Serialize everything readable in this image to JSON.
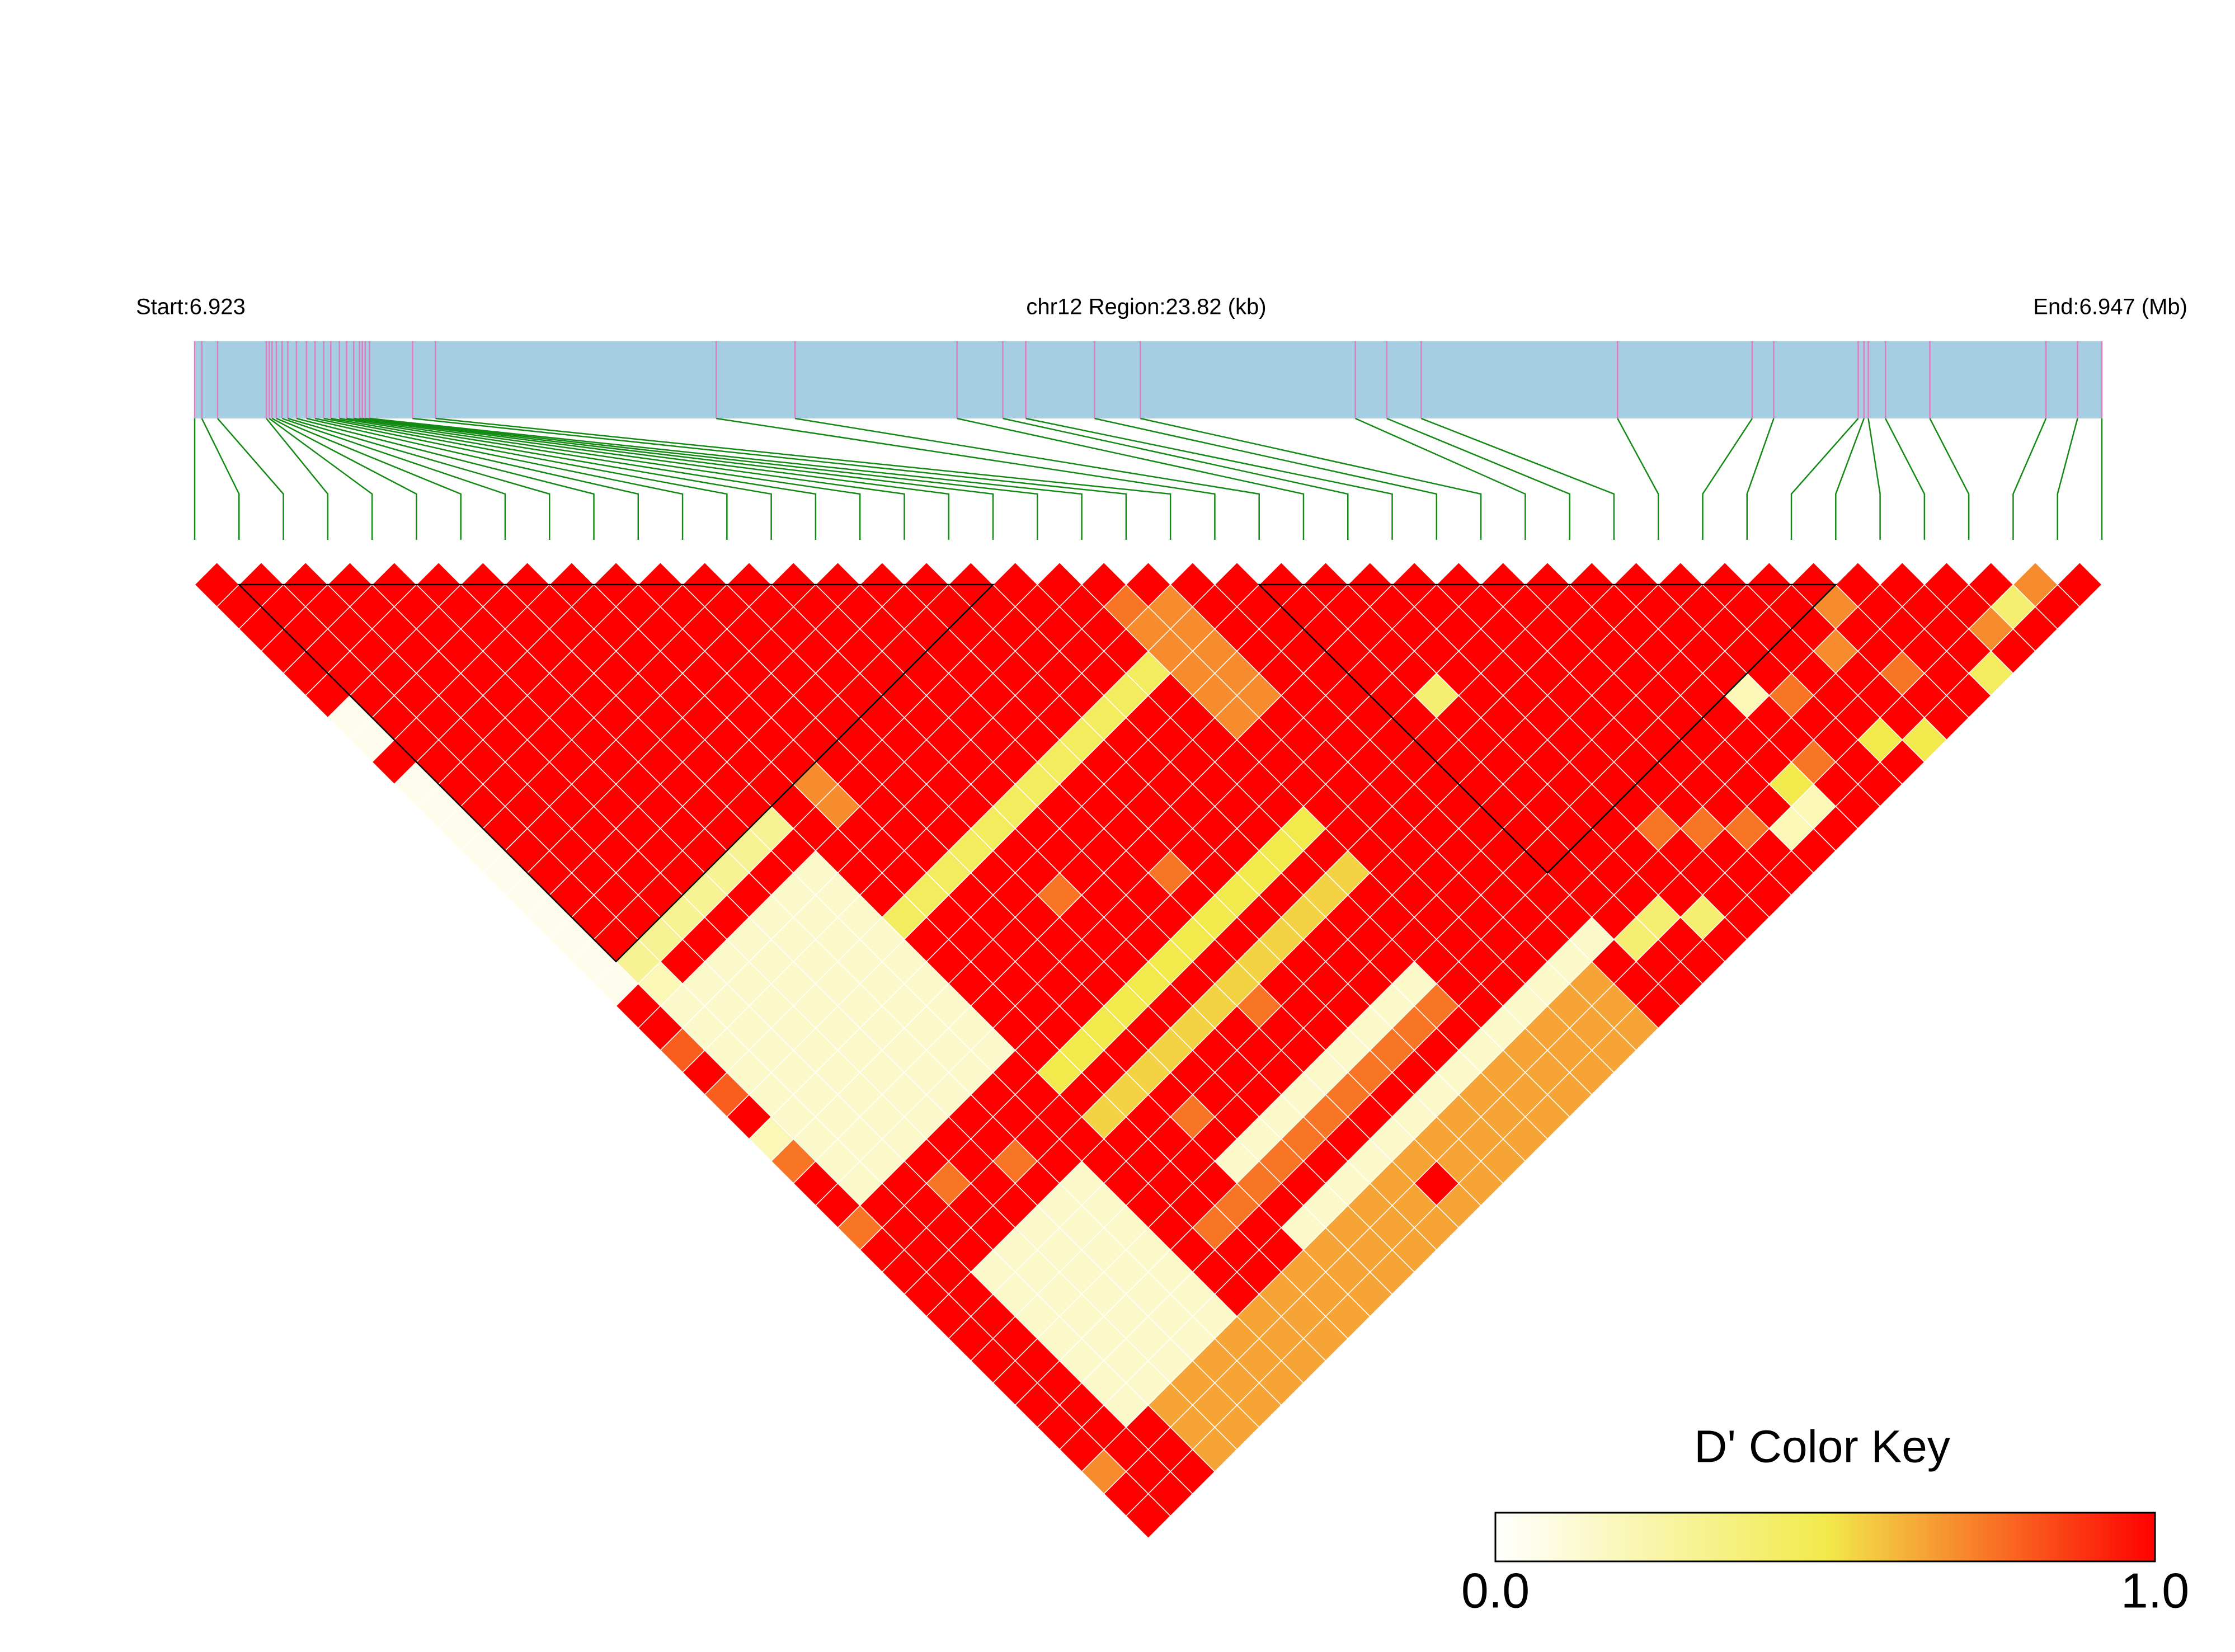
{
  "chart_data": {
    "type": "ld_heatmap",
    "start_label": "Start:6.923",
    "region_label": "chr12 Region:23.82 (kb)",
    "end_label": "End:6.947 (Mb)",
    "xlim": [
      6.923,
      6.94682
    ],
    "bar_color": "#a6cee3",
    "site_color": "#e07cc0",
    "connector_color": "#138a13",
    "block_color": "#000000",
    "positions": [
      6.923,
      6.923089,
      6.923286,
      6.923895,
      6.923931,
      6.923966,
      6.92402,
      6.924092,
      6.924163,
      6.924271,
      6.924396,
      6.924503,
      6.924611,
      6.9247,
      6.924808,
      6.924897,
      6.924986,
      6.925058,
      6.925094,
      6.92513,
      6.925183,
      6.92572,
      6.926007,
      6.929514,
      6.930498,
      6.932521,
      6.933093,
      6.93338,
      6.934239,
      6.934811,
      6.937496,
      6.937889,
      6.938319,
      6.940771,
      6.942453,
      6.942722,
      6.943777,
      6.943849,
      6.943903,
      6.944117,
      6.944672,
      6.946122,
      6.946516,
      6.94682
    ],
    "blocks": [
      [
        1,
        18
      ],
      [
        24,
        37
      ]
    ],
    "dprime": [
      [
        1,
        1,
        1,
        1,
        1,
        1,
        0.05,
        0.05,
        1,
        0.05,
        0.05,
        0.05,
        0.05,
        0.05,
        0.05,
        0.05,
        0.05,
        0.05,
        0.05,
        1,
        1,
        0.8,
        1,
        0.8,
        1,
        0.2,
        0.75,
        1,
        1,
        0.75,
        1,
        1,
        1,
        1,
        1,
        1,
        1,
        1,
        1,
        1,
        0.7,
        1,
        1
      ],
      [
        1,
        1,
        1,
        1,
        1,
        1,
        1,
        1,
        1,
        1,
        1,
        1,
        1,
        1,
        1,
        1,
        1,
        0.3,
        0.2,
        0.15,
        0.15,
        0.15,
        0.15,
        0.15,
        0.15,
        0.15,
        0.15,
        0.15,
        1,
        1,
        1,
        1,
        1,
        1,
        1,
        1,
        1,
        1,
        1,
        1,
        1,
        1
      ],
      [
        1,
        1,
        1,
        1,
        1,
        1,
        1,
        1,
        1,
        1,
        1,
        1,
        1,
        1,
        1,
        1,
        0.3,
        1,
        0.15,
        0.15,
        0.15,
        0.15,
        0.15,
        0.15,
        0.15,
        0.15,
        0.15,
        1,
        1,
        1,
        1,
        0.15,
        0.15,
        0.15,
        0.15,
        0.15,
        0.15,
        0.15,
        1,
        1,
        1
      ],
      [
        1,
        1,
        1,
        1,
        1,
        1,
        1,
        1,
        1,
        1,
        1,
        1,
        1,
        1,
        1,
        0.3,
        1,
        0.15,
        0.15,
        0.15,
        0.15,
        0.15,
        0.15,
        0.15,
        0.15,
        0.15,
        1,
        0.75,
        1,
        1,
        0.15,
        0.15,
        0.15,
        0.15,
        0.15,
        0.15,
        0.15,
        0.65,
        0.65,
        0.65
      ],
      [
        1,
        1,
        1,
        1,
        1,
        1,
        1,
        1,
        1,
        1,
        1,
        1,
        1,
        1,
        0.3,
        1,
        0.15,
        0.15,
        0.15,
        0.15,
        0.15,
        0.15,
        0.15,
        0.15,
        0.15,
        1,
        1,
        1,
        1,
        0.15,
        0.15,
        0.15,
        0.15,
        0.15,
        0.15,
        0.15,
        0.65,
        0.65,
        0.65
      ],
      [
        1,
        1,
        1,
        1,
        1,
        1,
        1,
        1,
        1,
        1,
        1,
        1,
        1,
        0.3,
        1,
        0.15,
        0.15,
        0.15,
        0.15,
        0.15,
        0.15,
        0.15,
        0.15,
        0.15,
        1,
        1,
        0.75,
        1,
        0.15,
        0.15,
        0.15,
        0.15,
        0.15,
        0.15,
        0.15,
        0.65,
        0.65,
        0.65
      ],
      [
        1,
        1,
        1,
        1,
        1,
        1,
        1,
        1,
        1,
        1,
        1,
        1,
        0.3,
        1,
        0.15,
        0.15,
        0.15,
        0.15,
        0.15,
        0.15,
        0.15,
        0.15,
        0.15,
        1,
        1,
        1,
        1,
        0.15,
        0.15,
        0.15,
        0.15,
        0.15,
        0.15,
        0.15,
        0.65,
        0.65,
        0.65
      ],
      [
        1,
        1,
        1,
        1,
        1,
        1,
        1,
        1,
        1,
        1,
        1,
        0.3,
        1,
        0.15,
        0.15,
        0.15,
        0.15,
        0.15,
        0.15,
        0.15,
        0.15,
        0.15,
        1,
        1,
        1,
        1,
        1,
        1,
        1,
        1,
        1,
        1,
        1,
        0.65,
        0.65,
        0.65
      ],
      [
        1,
        1,
        1,
        1,
        1,
        1,
        1,
        1,
        1,
        1,
        1,
        1,
        1,
        1,
        1,
        0.45,
        1,
        1,
        1,
        1,
        1,
        1,
        0.5,
        1,
        0.55,
        1,
        1,
        1,
        1,
        0.75,
        1,
        1,
        0.65,
        0.65,
        0.65
      ],
      [
        1,
        1,
        1,
        1,
        1,
        1,
        1,
        1,
        1,
        0.7,
        0.7,
        1,
        1,
        1,
        0.45,
        1,
        1,
        1,
        1,
        1,
        1,
        0.5,
        1,
        0.55,
        1,
        1,
        1,
        1,
        0.75,
        1,
        1,
        0.65,
        0.65,
        0.65
      ],
      [
        1,
        1,
        1,
        1,
        1,
        1,
        1,
        1,
        1,
        1,
        1,
        1,
        1,
        0.45,
        1,
        1,
        1,
        1,
        1,
        1,
        0.5,
        1,
        0.55,
        1,
        0.75,
        1,
        0.15,
        0.75,
        1,
        0.15,
        0.65,
        0.65,
        0.65
      ],
      [
        1,
        1,
        1,
        1,
        1,
        1,
        1,
        1,
        1,
        1,
        1,
        1,
        0.45,
        1,
        1,
        1,
        1,
        1,
        1,
        0.5,
        1,
        0.55,
        1,
        1,
        1,
        0.15,
        0.75,
        1,
        0.15,
        0.65,
        0.65,
        0.65
      ],
      [
        1,
        1,
        1,
        1,
        1,
        1,
        1,
        1,
        1,
        1,
        1,
        0.45,
        1,
        1,
        0.75,
        1,
        1,
        1,
        0.5,
        1,
        0.55,
        1,
        1,
        1,
        0.15,
        0.75,
        1,
        0.15,
        0.65,
        0.65,
        0.65
      ],
      [
        1,
        1,
        1,
        1,
        1,
        1,
        1,
        1,
        1,
        1,
        0.45,
        1,
        1,
        1,
        1,
        1,
        1,
        0.5,
        1,
        0.55,
        1,
        1,
        1,
        0.15,
        0.75,
        1,
        0.15,
        0.65,
        0.65,
        0.65
      ],
      [
        1,
        1,
        1,
        1,
        1,
        1,
        1,
        1,
        1,
        0.45,
        1,
        1,
        1,
        1,
        1,
        1,
        0.5,
        1,
        0.55,
        0.75,
        1,
        1,
        0.15,
        0.75,
        1,
        0.15,
        0.65,
        1,
        0.65
      ],
      [
        1,
        1,
        1,
        1,
        1,
        1,
        1,
        1,
        0.45,
        1,
        1,
        1,
        1,
        0.75,
        1,
        0.5,
        1,
        0.55,
        1,
        1,
        1,
        0.15,
        0.75,
        1,
        0.15,
        0.65,
        0.65,
        0.65
      ],
      [
        1,
        1,
        1,
        1,
        1,
        1,
        1,
        0.45,
        1,
        1,
        1,
        1,
        1,
        1,
        0.5,
        1,
        0.55,
        1,
        1,
        1,
        0.15,
        0.75,
        1,
        0.15,
        0.65,
        0.65,
        0.65
      ],
      [
        1,
        1,
        1,
        1,
        1,
        1,
        0.45,
        1,
        1,
        1,
        1,
        1,
        1,
        0.5,
        1,
        0.55,
        1,
        1,
        1,
        0.15,
        0.75,
        1,
        0.15,
        0.65,
        0.65,
        0.65
      ],
      [
        1,
        1,
        1,
        1,
        1,
        0.45,
        1,
        1,
        1,
        1,
        1,
        1,
        0.5,
        1,
        0.55,
        1,
        1,
        1,
        0.15,
        0.75,
        1,
        0.15,
        0.65,
        0.65,
        0.65
      ],
      [
        1,
        1,
        1,
        1,
        0.45,
        1,
        1,
        1,
        1,
        1,
        1,
        0.5,
        1,
        0.55,
        1,
        1,
        1,
        1,
        1,
        1,
        0.15,
        0.65,
        0.65,
        0.65
      ],
      [
        1,
        0.75,
        0.7,
        0.7,
        0.7,
        0.7,
        0.7,
        1,
        1,
        1,
        1,
        1,
        1,
        1,
        1,
        1,
        1,
        1,
        1,
        0.15,
        0.65,
        0.65,
        0.65
      ],
      [
        1,
        0.7,
        0.7,
        0.7,
        0.7,
        0.7,
        1,
        1,
        1,
        1,
        1,
        1,
        1,
        1,
        1,
        1,
        1,
        1,
        0.15,
        0.65,
        0.65,
        0.65
      ],
      [
        1,
        1,
        1,
        1,
        1,
        1,
        1,
        1,
        1,
        1,
        1,
        1,
        1,
        1,
        1,
        1,
        1,
        0.15,
        0.65,
        0.65,
        0.65
      ],
      [
        1,
        1,
        1,
        1,
        1,
        1,
        1,
        1,
        1,
        1,
        1,
        1,
        1,
        1,
        1,
        1,
        0.15,
        1,
        1,
        1
      ],
      [
        1,
        1,
        1,
        1,
        1,
        1,
        1,
        1,
        1,
        1,
        1,
        1,
        1,
        1,
        1,
        1,
        0.4,
        1,
        1
      ],
      [
        1,
        1,
        1,
        1,
        1,
        0.4,
        1,
        1,
        1,
        1,
        1,
        1,
        1,
        1,
        1,
        0.4,
        1,
        1
      ],
      [
        1,
        1,
        1,
        1,
        1,
        1,
        1,
        1,
        1,
        1,
        1,
        1,
        1,
        1,
        1,
        0.4,
        1
      ],
      [
        1,
        1,
        1,
        1,
        1,
        1,
        1,
        1,
        1,
        1,
        1,
        0.75,
        1,
        1,
        1,
        1
      ],
      [
        1,
        1,
        1,
        1,
        1,
        1,
        1,
        1,
        1,
        1,
        1,
        0.75,
        1,
        1,
        1
      ],
      [
        1,
        1,
        1,
        1,
        1,
        1,
        1,
        1,
        1,
        1,
        1,
        0.75,
        1,
        1
      ],
      [
        1,
        1,
        1,
        1,
        1,
        1,
        1,
        1,
        1,
        1,
        1,
        0.2,
        1
      ],
      [
        1,
        1,
        1,
        1,
        1,
        1,
        1,
        1,
        1,
        0.5,
        0.2,
        1
      ],
      [
        1,
        1,
        1,
        1,
        1,
        0.2,
        1,
        1,
        0.75,
        1,
        1
      ],
      [
        1,
        1,
        1,
        1,
        1,
        0.75,
        1,
        1,
        1,
        1
      ],
      [
        1,
        1,
        1,
        1,
        1,
        1,
        1,
        0.5,
        1
      ],
      [
        1,
        1,
        1,
        0.7,
        1,
        1,
        1,
        0.5
      ],
      [
        1,
        0.7,
        1,
        1,
        0.75,
        1,
        1
      ],
      [
        1,
        1,
        1,
        1,
        1,
        1
      ],
      [
        1,
        1,
        1,
        1,
        0.45
      ],
      [
        1,
        1,
        0.7,
        1
      ],
      [
        1,
        0.4,
        1
      ],
      [
        0.7,
        1
      ],
      [
        1
      ]
    ],
    "colormap": [
      "#ffffff",
      "#f2ea4c",
      "#ff0000"
    ],
    "color_key": {
      "title": "D' Color Key",
      "ticks": [
        {
          "value": 0,
          "label": "0.0"
        },
        {
          "value": 1,
          "label": "1.0"
        }
      ]
    }
  }
}
